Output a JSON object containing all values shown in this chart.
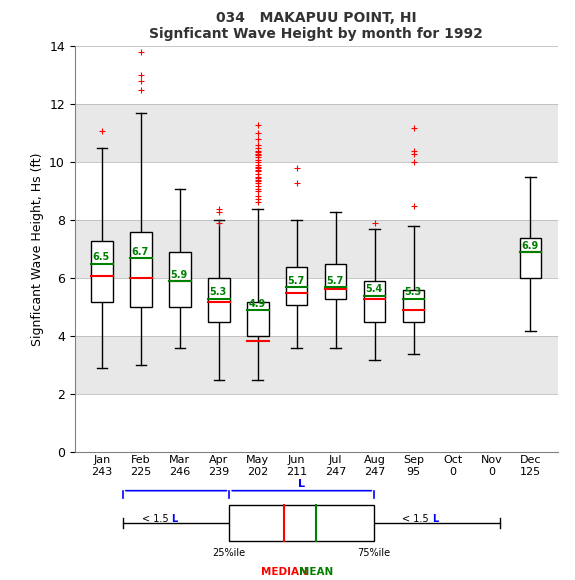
{
  "title1": "034   MAKAPUU POINT, HI",
  "title2": "Signficant Wave Height by month for 1992",
  "ylabel": "Signficant Wave Height, Hs (ft)",
  "months": [
    "Jan",
    "Feb",
    "Mar",
    "Apr",
    "May",
    "Jun",
    "Jul",
    "Aug",
    "Sep",
    "Oct",
    "Nov",
    "Dec"
  ],
  "counts": [
    243,
    225,
    246,
    239,
    202,
    211,
    247,
    247,
    95,
    0,
    0,
    125
  ],
  "ylim": [
    0,
    14
  ],
  "yticks": [
    0,
    2,
    4,
    6,
    8,
    10,
    12,
    14
  ],
  "box_data": {
    "Jan": {
      "q1": 5.2,
      "median": 6.1,
      "q3": 7.3,
      "whislo": 2.9,
      "whishi": 10.5,
      "mean": 6.5,
      "fliers": [
        11.1
      ]
    },
    "Feb": {
      "q1": 5.0,
      "median": 6.0,
      "q3": 7.6,
      "whislo": 3.0,
      "whishi": 11.7,
      "mean": 6.7,
      "fliers": [
        12.5,
        13.0,
        13.8,
        12.8
      ]
    },
    "Mar": {
      "q1": 5.0,
      "median": 5.9,
      "q3": 6.9,
      "whislo": 3.6,
      "whishi": 9.1,
      "mean": 5.9,
      "fliers": []
    },
    "Apr": {
      "q1": 4.5,
      "median": 5.2,
      "q3": 6.0,
      "whislo": 2.5,
      "whishi": 8.0,
      "mean": 5.3,
      "fliers": [
        8.3,
        8.4,
        7.9
      ]
    },
    "May": {
      "q1": 4.0,
      "median": 3.85,
      "q3": 5.2,
      "whislo": 2.5,
      "whishi": 8.4,
      "mean": 4.9,
      "fliers": [
        11.3,
        11.0,
        10.8,
        10.6,
        10.5,
        10.4,
        10.35,
        10.3,
        10.25,
        10.2,
        10.1,
        10.0,
        9.9,
        9.85,
        9.8,
        9.75,
        9.7,
        9.6,
        9.5,
        9.45,
        9.4,
        9.35,
        9.3,
        9.2,
        9.1,
        9.0,
        8.85,
        8.75,
        8.65
      ]
    },
    "Jun": {
      "q1": 5.1,
      "median": 5.5,
      "q3": 6.4,
      "whislo": 3.6,
      "whishi": 8.0,
      "mean": 5.7,
      "fliers": [
        9.8,
        9.3
      ]
    },
    "Jul": {
      "q1": 5.3,
      "median": 5.65,
      "q3": 6.5,
      "whislo": 3.6,
      "whishi": 8.3,
      "mean": 5.7,
      "fliers": []
    },
    "Aug": {
      "q1": 4.5,
      "median": 5.3,
      "q3": 5.9,
      "whislo": 3.2,
      "whishi": 7.7,
      "mean": 5.4,
      "fliers": [
        7.9
      ]
    },
    "Sep": {
      "q1": 4.5,
      "median": 4.9,
      "q3": 5.6,
      "whislo": 3.4,
      "whishi": 7.8,
      "mean": 5.3,
      "fliers": [
        8.5,
        10.0,
        10.3,
        10.4,
        11.2
      ]
    },
    "Oct": {
      "q1": null,
      "median": null,
      "q3": null,
      "whislo": null,
      "whishi": null,
      "mean": null,
      "fliers": []
    },
    "Nov": {
      "q1": null,
      "median": null,
      "q3": null,
      "whislo": null,
      "whishi": null,
      "mean": null,
      "fliers": []
    },
    "Dec": {
      "q1": 6.0,
      "median": 6.9,
      "q3": 7.4,
      "whislo": 4.2,
      "whishi": 9.5,
      "mean": 6.9,
      "fliers": []
    }
  },
  "bg_bands": [
    [
      0,
      2,
      "white"
    ],
    [
      2,
      4,
      "#e8e8e8"
    ],
    [
      4,
      6,
      "white"
    ],
    [
      6,
      8,
      "#e8e8e8"
    ],
    [
      8,
      10,
      "white"
    ],
    [
      10,
      12,
      "#e8e8e8"
    ],
    [
      12,
      14,
      "white"
    ]
  ],
  "box_facecolor": "white",
  "median_color": "red",
  "mean_color": "green",
  "flier_color": "red",
  "whisker_color": "black",
  "box_edge_color": "black",
  "box_width": 0.55,
  "cap_ratio": 0.5
}
